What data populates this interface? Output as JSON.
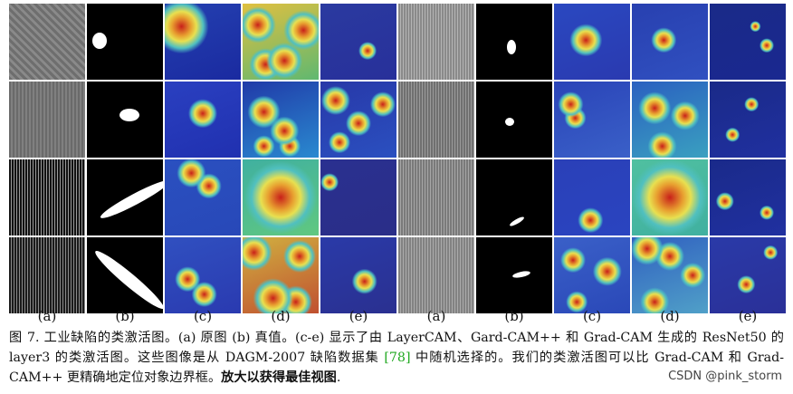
{
  "figure": {
    "column_labels_left": [
      "(a)",
      "(b)",
      "(c)",
      "(d)",
      "(e)"
    ],
    "column_labels_right": [
      "(a)",
      "(b)",
      "(c)",
      "(d)",
      "(e)"
    ]
  },
  "caption": {
    "part1": "图 7. 工业缺陷的类激活图。(a) 原图 (b) 真值。(c-e) 显示了由 LayerCAM、Gard-CAM++ 和 Grad-CAM 生成的 ResNet50 的 layer3 的类激活图。这些图像是从 DAGM-2007 缺陷数据集 ",
    "ref": "[78]",
    "part2": " 中随机选择的。我们的类激活图可以比 Grad-CAM 和 Grad-CAM++ 更精确地定位对象边界框。",
    "bold": "放大以获得最佳视图",
    "end": "."
  },
  "watermark": "CSDN @pink_storm",
  "colors": {
    "jet_blue": "#1a2a9a",
    "jet_red": "#d42a1a",
    "jet_yellow": "#e8d84a",
    "jet_cyan": "#3ab8c8",
    "ref_green": "#1fa81f"
  }
}
